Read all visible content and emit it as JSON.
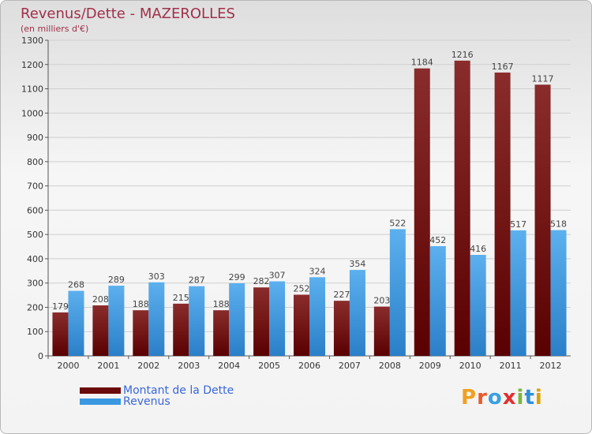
{
  "title": "Revenus/Dette - MAZEROLLES",
  "subtitle": "(en milliers d'€)",
  "logo": {
    "text": "Proxiti",
    "colors": [
      "#f0a020",
      "#e85a2a",
      "#3aa0e0",
      "#e03030",
      "#7ab83a",
      "#2e8fd8",
      "#e0a000"
    ]
  },
  "colors": {
    "dette": "#6b0a0a",
    "revenus": "#3a98e0",
    "title": "#a0304a",
    "legend_text": "#3a67d8"
  },
  "chart_data": {
    "type": "bar",
    "title": "Revenus/Dette - MAZEROLLES",
    "ylabel": "(en milliers d'€)",
    "categories": [
      "2000",
      "2001",
      "2002",
      "2003",
      "2004",
      "2005",
      "2006",
      "2007",
      "2008",
      "2009",
      "2010",
      "2011",
      "2012"
    ],
    "ylim": [
      0,
      1300
    ],
    "yticks": [
      0,
      100,
      200,
      300,
      400,
      500,
      600,
      700,
      800,
      900,
      1000,
      1100,
      1200,
      1300
    ],
    "grid": true,
    "legend_position": "bottom-left",
    "series": [
      {
        "name": "Montant de la Dette",
        "values": [
          179,
          208,
          188,
          215,
          188,
          282,
          252,
          227,
          203,
          1184,
          1216,
          1167,
          1117
        ]
      },
      {
        "name": "Revenus",
        "values": [
          268,
          289,
          303,
          287,
          299,
          307,
          324,
          354,
          522,
          452,
          416,
          517,
          518
        ]
      }
    ]
  }
}
